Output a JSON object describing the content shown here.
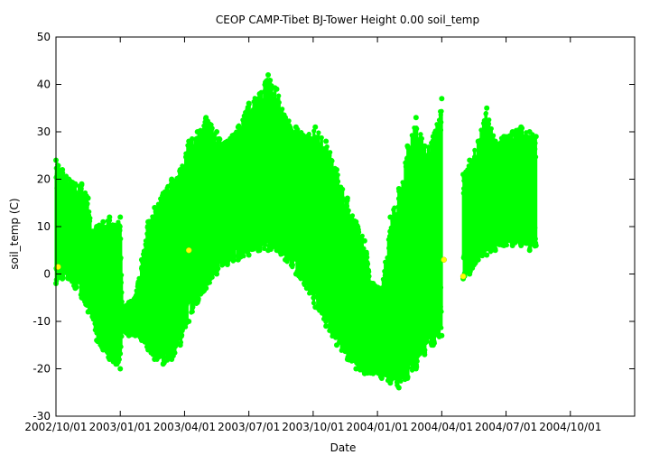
{
  "chart_data": {
    "type": "scatter",
    "title": "CEOP CAMP-Tibet BJ-Tower Height 0.00 soil_temp",
    "xlabel": "Date",
    "ylabel": "soil_temp (C)",
    "x_ticks": [
      "2002/10/01",
      "2003/01/01",
      "2003/04/01",
      "2003/07/01",
      "2003/10/01",
      "2004/01/01",
      "2004/04/01",
      "2004/07/01",
      "2004/10/01"
    ],
    "xlim_months": [
      0,
      27
    ],
    "ylim": [
      -30,
      50
    ],
    "y_ticks": [
      -30,
      -20,
      -10,
      0,
      10,
      20,
      30,
      40,
      50
    ],
    "grid": false,
    "colors": {
      "main_series": "#00ff00",
      "flagged_points": "#ffff00",
      "axes": "#000000"
    },
    "series": [
      {
        "name": "soil_temp",
        "color": "#00ff00",
        "description_units": "x in months since 2002/10/01, values give daily [min, max] envelope",
        "envelope": [
          {
            "x": 0.0,
            "min": -2,
            "max": 24
          },
          {
            "x": 0.3,
            "min": -1,
            "max": 22
          },
          {
            "x": 0.6,
            "min": -1,
            "max": 20
          },
          {
            "x": 0.9,
            "min": -3,
            "max": 19
          },
          {
            "x": 1.2,
            "min": -5,
            "max": 19
          },
          {
            "x": 1.5,
            "min": -8,
            "max": 16
          },
          {
            "x": 1.7,
            "min": -9,
            "max": 9
          },
          {
            "x": 1.9,
            "min": -14,
            "max": 10
          },
          {
            "x": 2.2,
            "min": -16,
            "max": 11
          },
          {
            "x": 2.5,
            "min": -18,
            "max": 12
          },
          {
            "x": 2.8,
            "min": -19,
            "max": 10
          },
          {
            "x": 3.0,
            "min": -20,
            "max": 12
          },
          {
            "x": 3.1,
            "min": -12,
            "max": -7
          },
          {
            "x": 3.4,
            "min": -13,
            "max": -6
          },
          {
            "x": 3.7,
            "min": -13,
            "max": -5
          },
          {
            "x": 4.0,
            "min": -14,
            "max": 3
          },
          {
            "x": 4.3,
            "min": -16,
            "max": 11
          },
          {
            "x": 4.6,
            "min": -18,
            "max": 14
          },
          {
            "x": 5.0,
            "min": -19,
            "max": 17
          },
          {
            "x": 5.4,
            "min": -18,
            "max": 20
          },
          {
            "x": 5.8,
            "min": -15,
            "max": 22
          },
          {
            "x": 6.2,
            "min": -10,
            "max": 28
          },
          {
            "x": 6.6,
            "min": -6,
            "max": 30
          },
          {
            "x": 7.0,
            "min": -3,
            "max": 33
          },
          {
            "x": 7.5,
            "min": 0,
            "max": 30
          },
          {
            "x": 8.0,
            "min": 2,
            "max": 28
          },
          {
            "x": 8.5,
            "min": 3,
            "max": 31
          },
          {
            "x": 9.0,
            "min": 4,
            "max": 36
          },
          {
            "x": 9.5,
            "min": 5,
            "max": 38
          },
          {
            "x": 9.9,
            "min": 5,
            "max": 42
          },
          {
            "x": 10.3,
            "min": 5,
            "max": 39
          },
          {
            "x": 10.7,
            "min": 3,
            "max": 33
          },
          {
            "x": 11.2,
            "min": 0,
            "max": 31
          },
          {
            "x": 11.7,
            "min": -3,
            "max": 29
          },
          {
            "x": 12.1,
            "min": -7,
            "max": 31
          },
          {
            "x": 12.6,
            "min": -11,
            "max": 28
          },
          {
            "x": 13.1,
            "min": -15,
            "max": 22
          },
          {
            "x": 13.6,
            "min": -18,
            "max": 16
          },
          {
            "x": 14.0,
            "min": -20,
            "max": 11
          },
          {
            "x": 14.4,
            "min": -21,
            "max": 7
          },
          {
            "x": 14.8,
            "min": -21,
            "max": -2
          },
          {
            "x": 15.2,
            "min": -22,
            "max": -3
          },
          {
            "x": 15.6,
            "min": -23,
            "max": 12
          },
          {
            "x": 16.0,
            "min": -24,
            "max": 18
          },
          {
            "x": 16.4,
            "min": -22,
            "max": 27
          },
          {
            "x": 16.8,
            "min": -20,
            "max": 33
          },
          {
            "x": 17.2,
            "min": -17,
            "max": 27
          },
          {
            "x": 17.6,
            "min": -15,
            "max": 29
          },
          {
            "x": 18.0,
            "min": -13,
            "max": 37
          },
          {
            "x": 19.0,
            "min": -1,
            "max": 21
          },
          {
            "x": 19.3,
            "min": 0,
            "max": 24
          },
          {
            "x": 19.7,
            "min": 3,
            "max": 28
          },
          {
            "x": 20.1,
            "min": 4,
            "max": 35
          },
          {
            "x": 20.5,
            "min": 5,
            "max": 28
          },
          {
            "x": 20.9,
            "min": 6,
            "max": 29
          },
          {
            "x": 21.3,
            "min": 6,
            "max": 30
          },
          {
            "x": 21.7,
            "min": 6,
            "max": 31
          },
          {
            "x": 22.1,
            "min": 5,
            "max": 30
          },
          {
            "x": 22.4,
            "min": 6,
            "max": 29
          }
        ]
      },
      {
        "name": "flagged",
        "color": "#ffff00",
        "points": [
          {
            "x": 0.1,
            "y": 1.5
          },
          {
            "x": 6.2,
            "y": 5
          },
          {
            "x": 18.1,
            "y": 3
          },
          {
            "x": 19.0,
            "y": -0.5
          }
        ]
      }
    ]
  }
}
